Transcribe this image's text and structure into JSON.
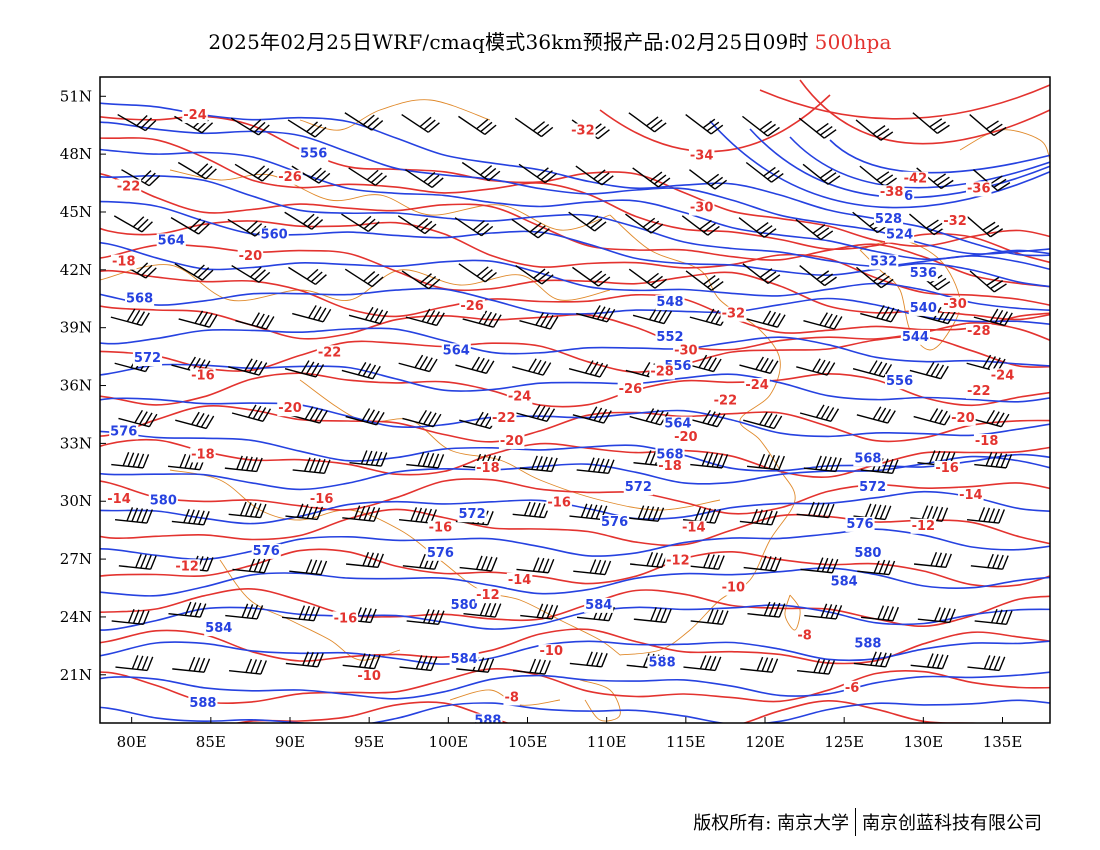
{
  "title": {
    "main": "2025年02月25日WRF/cmaq模式36km预报产品:02月25日09时",
    "level": "500hpa"
  },
  "colors": {
    "height": "#2642e0",
    "temperature": "#e3332f",
    "coast": "#e08a2c",
    "wind": "#000000"
  },
  "axes": {
    "x_ticks": [
      "80E",
      "85E",
      "90E",
      "95E",
      "100E",
      "105E",
      "110E",
      "115E",
      "120E",
      "125E",
      "130E",
      "135E"
    ],
    "y_ticks": [
      "51N",
      "48N",
      "45N",
      "42N",
      "39N",
      "36N",
      "33N",
      "30N",
      "27N",
      "24N",
      "21N"
    ],
    "lon_range": [
      78,
      138
    ],
    "lat_range": [
      18.5,
      52
    ]
  },
  "height_contours": [
    {
      "label": "556",
      "lon": 91.5,
      "lat": 48
    },
    {
      "label": "560",
      "lon": 89,
      "lat": 43.8
    },
    {
      "label": "564",
      "lon": 82.5,
      "lat": 43.5
    },
    {
      "label": "568",
      "lon": 80.5,
      "lat": 40.5
    },
    {
      "label": "572",
      "lon": 81,
      "lat": 37.4
    },
    {
      "label": "576",
      "lon": 79.5,
      "lat": 33.6
    },
    {
      "label": "580",
      "lon": 82,
      "lat": 30
    },
    {
      "label": "576",
      "lon": 88.5,
      "lat": 27.4
    },
    {
      "label": "584",
      "lon": 85.5,
      "lat": 23.4
    },
    {
      "label": "588",
      "lon": 84.5,
      "lat": 19.5
    },
    {
      "label": "548",
      "lon": 114,
      "lat": 40.3
    },
    {
      "label": "552",
      "lon": 114,
      "lat": 38.5
    },
    {
      "label": "556",
      "lon": 114.5,
      "lat": 37
    },
    {
      "label": "564",
      "lon": 100.5,
      "lat": 37.8
    },
    {
      "label": "564",
      "lon": 114.5,
      "lat": 34
    },
    {
      "label": "568",
      "lon": 114,
      "lat": 32.4
    },
    {
      "label": "572",
      "lon": 112,
      "lat": 30.7
    },
    {
      "label": "572",
      "lon": 101.5,
      "lat": 29.3
    },
    {
      "label": "576",
      "lon": 99.5,
      "lat": 27.3
    },
    {
      "label": "576",
      "lon": 110.5,
      "lat": 28.9
    },
    {
      "label": "580",
      "lon": 101,
      "lat": 24.6
    },
    {
      "label": "584",
      "lon": 109.5,
      "lat": 24.6
    },
    {
      "label": "584",
      "lon": 101,
      "lat": 21.8
    },
    {
      "label": "588",
      "lon": 113.5,
      "lat": 21.6
    },
    {
      "label": "588",
      "lon": 102.5,
      "lat": 18.6
    },
    {
      "label": "584",
      "lon": 125,
      "lat": 25.8
    },
    {
      "label": "588",
      "lon": 126.5,
      "lat": 22.6
    },
    {
      "label": "576",
      "lon": 126,
      "lat": 28.8
    },
    {
      "label": "580",
      "lon": 126.5,
      "lat": 27.3
    },
    {
      "label": "572",
      "lon": 126.8,
      "lat": 30.7
    },
    {
      "label": "568",
      "lon": 126.5,
      "lat": 32.2
    },
    {
      "label": "556",
      "lon": 128.5,
      "lat": 36.2
    },
    {
      "label": "544",
      "lon": 129.5,
      "lat": 38.5
    },
    {
      "label": "540",
      "lon": 130,
      "lat": 40
    },
    {
      "label": "536",
      "lon": 130,
      "lat": 41.8
    },
    {
      "label": "532",
      "lon": 127.5,
      "lat": 42.4
    },
    {
      "label": "528",
      "lon": 127.8,
      "lat": 44.6
    },
    {
      "label": "524",
      "lon": 128.5,
      "lat": 43.8
    },
    {
      "label": "516",
      "lon": 128.5,
      "lat": 45.8
    }
  ],
  "temperature_contours": [
    {
      "label": "-24",
      "lon": 84,
      "lat": 50
    },
    {
      "label": "-22",
      "lon": 79.8,
      "lat": 46.3
    },
    {
      "label": "-26",
      "lon": 90,
      "lat": 46.8
    },
    {
      "label": "-18",
      "lon": 79.5,
      "lat": 42.4
    },
    {
      "label": "-20",
      "lon": 87.5,
      "lat": 42.7
    },
    {
      "label": "-32",
      "lon": 108.5,
      "lat": 49.2
    },
    {
      "label": "-34",
      "lon": 116,
      "lat": 47.9
    },
    {
      "label": "-30",
      "lon": 116,
      "lat": 45.2
    },
    {
      "label": "-42",
      "lon": 129.5,
      "lat": 46.7
    },
    {
      "label": "-38",
      "lon": 128,
      "lat": 46
    },
    {
      "label": "-36",
      "lon": 133.5,
      "lat": 46.2
    },
    {
      "label": "-32",
      "lon": 132,
      "lat": 44.5
    },
    {
      "label": "-30",
      "lon": 132,
      "lat": 40.2
    },
    {
      "label": "-28",
      "lon": 133.5,
      "lat": 38.8
    },
    {
      "label": "-26",
      "lon": 101.5,
      "lat": 40.1
    },
    {
      "label": "-32",
      "lon": 118,
      "lat": 39.7
    },
    {
      "label": "-30",
      "lon": 115,
      "lat": 37.8
    },
    {
      "label": "-28",
      "lon": 113.5,
      "lat": 36.7
    },
    {
      "label": "-26",
      "lon": 111.5,
      "lat": 35.8
    },
    {
      "label": "-24",
      "lon": 119.5,
      "lat": 36
    },
    {
      "label": "-22",
      "lon": 117.5,
      "lat": 35.2
    },
    {
      "label": "-20",
      "lon": 115,
      "lat": 33.3
    },
    {
      "label": "-18",
      "lon": 114,
      "lat": 31.8
    },
    {
      "label": "-24",
      "lon": 104.5,
      "lat": 35.4
    },
    {
      "label": "-22",
      "lon": 103.5,
      "lat": 34.3
    },
    {
      "label": "-20",
      "lon": 104,
      "lat": 33.1
    },
    {
      "label": "-18",
      "lon": 102.5,
      "lat": 31.7
    },
    {
      "label": "-16",
      "lon": 84.5,
      "lat": 36.5
    },
    {
      "label": "-22",
      "lon": 92.5,
      "lat": 37.7
    },
    {
      "label": "-20",
      "lon": 90,
      "lat": 34.8
    },
    {
      "label": "-18",
      "lon": 84.5,
      "lat": 32.4
    },
    {
      "label": "-14",
      "lon": 79.2,
      "lat": 30.1
    },
    {
      "label": "-16",
      "lon": 92,
      "lat": 30.1
    },
    {
      "label": "-16",
      "lon": 99.5,
      "lat": 28.6
    },
    {
      "label": "-16",
      "lon": 107,
      "lat": 29.9
    },
    {
      "label": "-12",
      "lon": 83.5,
      "lat": 26.6
    },
    {
      "label": "-16",
      "lon": 93.5,
      "lat": 23.9
    },
    {
      "label": "-14",
      "lon": 104.5,
      "lat": 25.9
    },
    {
      "label": "-12",
      "lon": 102.5,
      "lat": 25.1
    },
    {
      "label": "-10",
      "lon": 95,
      "lat": 20.9
    },
    {
      "label": "-10",
      "lon": 106.5,
      "lat": 22.2
    },
    {
      "label": "-8",
      "lon": 104,
      "lat": 19.8
    },
    {
      "label": "-12",
      "lon": 114.5,
      "lat": 26.9
    },
    {
      "label": "-14",
      "lon": 115.5,
      "lat": 28.6
    },
    {
      "label": "-10",
      "lon": 118,
      "lat": 25.5
    },
    {
      "label": "-8",
      "lon": 122.5,
      "lat": 23
    },
    {
      "label": "-6",
      "lon": 125.5,
      "lat": 20.3
    },
    {
      "label": "-12",
      "lon": 130,
      "lat": 28.7
    },
    {
      "label": "-14",
      "lon": 133,
      "lat": 30.3
    },
    {
      "label": "-16",
      "lon": 131.5,
      "lat": 31.7
    },
    {
      "label": "-18",
      "lon": 134,
      "lat": 33.1
    },
    {
      "label": "-20",
      "lon": 132.5,
      "lat": 34.3
    },
    {
      "label": "-22",
      "lon": 133.5,
      "lat": 35.7
    },
    {
      "label": "-24",
      "lon": 135,
      "lat": 36.5
    }
  ],
  "footer": {
    "copyright": "版权所有: 南京大学",
    "company": "南京创蓝科技有限公司"
  }
}
